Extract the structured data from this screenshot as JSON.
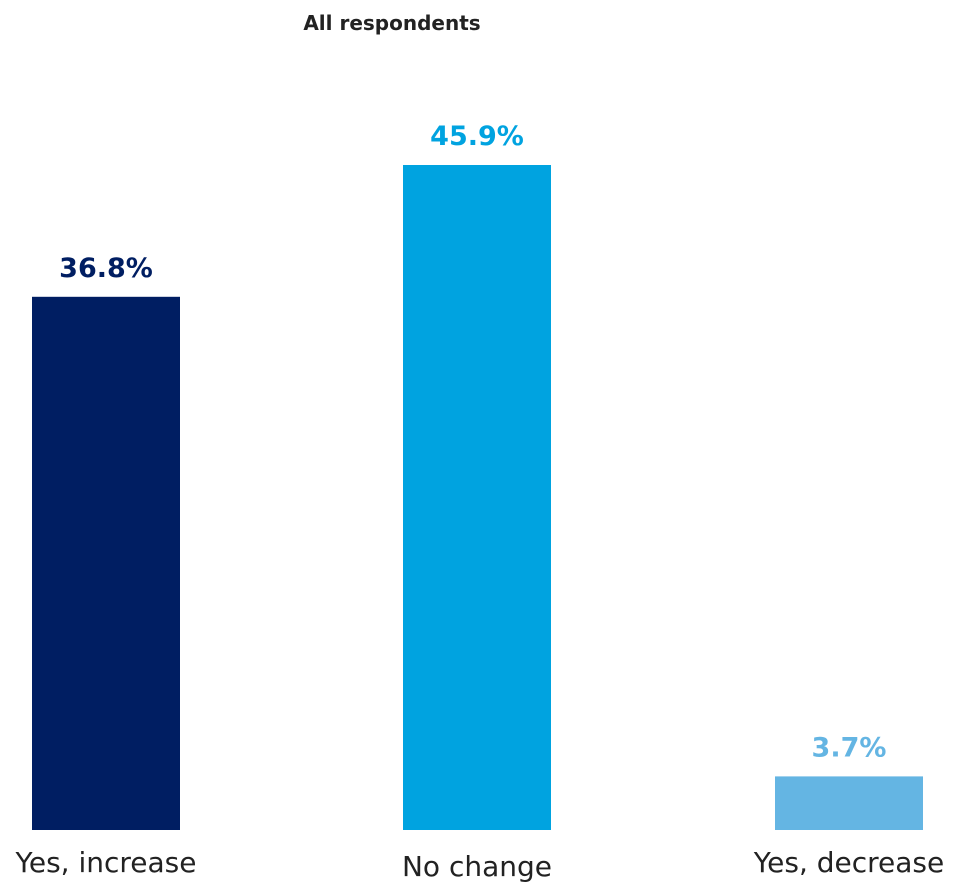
{
  "chart_data": {
    "type": "bar",
    "title": "All respondents",
    "xlabel": "",
    "ylabel": "",
    "categories": [
      "Yes, increase",
      "No change",
      "Yes, decrease"
    ],
    "values": [
      36.8,
      45.9,
      3.7
    ],
    "data_labels": [
      "36.8%",
      "45.9%",
      "3.7%"
    ],
    "colors": [
      "#001E62",
      "#00A3E0",
      "#64B5E3"
    ],
    "ylim": [
      0,
      50
    ],
    "grid": false,
    "legend": "none"
  }
}
